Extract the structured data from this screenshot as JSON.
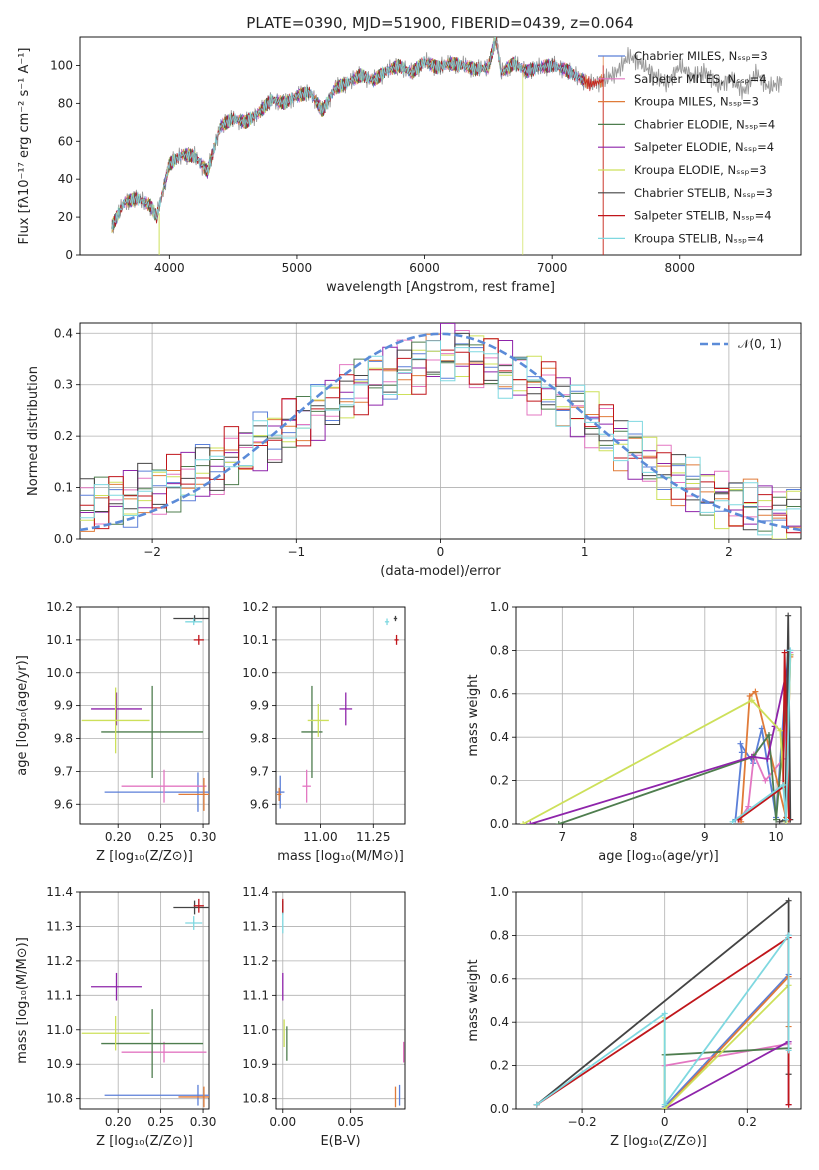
{
  "chart_data": [
    {
      "id": "spectrum",
      "type": "line",
      "title": "PLATE=0390, MJD=51900, FIBERID=0439, z=0.064",
      "xlabel": "wavelength [Angstrom, rest frame]",
      "ylabel": "Flux [fλ10⁻¹⁷ erg cm⁻² s⁻¹ A⁻¹]",
      "xlim": [
        3300,
        8950
      ],
      "ylim": [
        0,
        115
      ],
      "xticks": [
        4000,
        5000,
        6000,
        7000,
        8000
      ],
      "yticks": [
        0,
        20,
        40,
        60,
        80,
        100
      ],
      "grid": false,
      "legend_position": "top-right",
      "observed_spectrum": {
        "x": [
          3550,
          3650,
          3750,
          3850,
          3900,
          3950,
          4000,
          4100,
          4200,
          4300,
          4400,
          4500,
          4600,
          4700,
          4800,
          4900,
          5000,
          5100,
          5200,
          5300,
          5400,
          5500,
          5600,
          5700,
          5800,
          5900,
          6000,
          6100,
          6200,
          6300,
          6400,
          6500,
          6560,
          6600,
          6700,
          6800,
          6900,
          7000,
          7100,
          7200,
          7300,
          7400,
          7500,
          7600,
          7700,
          7800,
          7900,
          8000,
          8100,
          8200,
          8300,
          8400,
          8500,
          8600,
          8700,
          8800
        ],
        "y": [
          15,
          28,
          30,
          26,
          20,
          34,
          48,
          53,
          52,
          44,
          68,
          72,
          70,
          75,
          82,
          80,
          84,
          86,
          76,
          88,
          91,
          95,
          92,
          97,
          100,
          96,
          102,
          99,
          101,
          100,
          98,
          99,
          115,
          96,
          101,
          97,
          99,
          100,
          98,
          94,
          90,
          92,
          96,
          105,
          101,
          95,
          90,
          100,
          94,
          97,
          89,
          93,
          86,
          96,
          88,
          92
        ]
      },
      "series": [
        {
          "name": "Chabrier MILES, Nₛₛₚ=3",
          "color": "#5b7fd8",
          "cutoff": null
        },
        {
          "name": "Salpeter MILES, Nₛₛₚ=4",
          "color": "#e377c2",
          "cutoff": null
        },
        {
          "name": "Kroupa MILES, Nₛₛₚ=3",
          "color": "#e07b39",
          "cutoff": [
            7400,
            0,
            105
          ]
        },
        {
          "name": "Chabrier ELODIE, Nₛₛₚ=4",
          "color": "#4e7d4e",
          "cutoff": null
        },
        {
          "name": "Salpeter ELODIE, Nₛₛₚ=4",
          "color": "#8e24aa",
          "cutoff": null
        },
        {
          "name": "Kroupa ELODIE, Nₛₛₚ=3",
          "color": "#cde05a",
          "cutoff": [
            6770,
            0,
            100
          ]
        },
        {
          "name": "Chabrier STELIB, Nₛₛₚ=3",
          "color": "#444444",
          "cutoff": null
        },
        {
          "name": "Salpeter STELIB, Nₛₛₚ=4",
          "color": "#c0161b",
          "cutoff": [
            7400,
            0,
            100
          ]
        },
        {
          "name": "Kroupa STELIB, Nₛₛₚ=4",
          "color": "#7fd8e0",
          "cutoff": null
        }
      ]
    },
    {
      "id": "residuals",
      "type": "line",
      "xlabel": "(data-model)/error",
      "ylabel": "Normed distribution",
      "xlim": [
        -2.5,
        2.5
      ],
      "ylim": [
        0,
        0.42
      ],
      "xticks": [
        -2,
        -1,
        0,
        1,
        2
      ],
      "yticks": [
        0.0,
        0.1,
        0.2,
        0.3,
        0.4
      ],
      "grid": true,
      "legend_position": "top-right",
      "reference_curve": {
        "name": "𝒩(0, 1)",
        "color": "#5b8bd8",
        "style": "dashed",
        "mean": 0,
        "sd": 1
      },
      "histogram_bins": {
        "start": -2.5,
        "width": 0.1,
        "count": 50
      },
      "histogram_shape": [
        0.06,
        0.07,
        0.08,
        0.08,
        0.09,
        0.1,
        0.11,
        0.12,
        0.13,
        0.14,
        0.16,
        0.17,
        0.19,
        0.2,
        0.22,
        0.23,
        0.25,
        0.27,
        0.28,
        0.3,
        0.31,
        0.32,
        0.33,
        0.34,
        0.35,
        0.36,
        0.36,
        0.35,
        0.34,
        0.33,
        0.32,
        0.3,
        0.29,
        0.27,
        0.25,
        0.23,
        0.21,
        0.19,
        0.17,
        0.15,
        0.13,
        0.12,
        0.1,
        0.09,
        0.08,
        0.07,
        0.06,
        0.06,
        0.05,
        0.05
      ]
    },
    {
      "id": "z-age",
      "type": "scatter",
      "xlabel": "Z [log₁₀(Z/Z⊙)]",
      "ylabel": "age  [log₁₀(age/yr)]",
      "xlim": [
        0.155,
        0.307
      ],
      "ylim": [
        9.54,
        10.2
      ],
      "xticks": [
        0.2,
        0.25,
        0.3
      ],
      "yticks": [
        9.6,
        9.7,
        9.8,
        9.9,
        10.0,
        10.1,
        10.2
      ],
      "grid": true,
      "points": [
        {
          "x": 0.294,
          "y": 9.637,
          "ex": 0.11,
          "ey": 0.06,
          "color": "#5b7fd8"
        },
        {
          "x": 0.254,
          "y": 9.655,
          "ex": 0.05,
          "ey": 0.05,
          "color": "#e377c2"
        },
        {
          "x": 0.301,
          "y": 9.63,
          "ex": 0.03,
          "ey": 0.05,
          "color": "#e07b39"
        },
        {
          "x": 0.24,
          "y": 9.82,
          "ex": 0.06,
          "ey": 0.14,
          "color": "#4e7d4e"
        },
        {
          "x": 0.198,
          "y": 9.89,
          "ex": 0.03,
          "ey": 0.05,
          "color": "#8e24aa"
        },
        {
          "x": 0.197,
          "y": 9.855,
          "ex": 0.04,
          "ey": 0.1,
          "color": "#cde05a"
        },
        {
          "x": 0.29,
          "y": 10.165,
          "ex": 0.025,
          "ey": 0.01,
          "color": "#444444"
        },
        {
          "x": 0.295,
          "y": 10.1,
          "ex": 0.006,
          "ey": 0.015,
          "color": "#c0161b"
        },
        {
          "x": 0.289,
          "y": 10.155,
          "ex": 0.01,
          "ey": 0.01,
          "color": "#7fd8e0"
        }
      ]
    },
    {
      "id": "mass-age",
      "type": "scatter",
      "xlabel": "mass [log₁₀(M/M⊙)]",
      "xlim": [
        10.79,
        11.4
      ],
      "ylim": [
        9.54,
        10.2
      ],
      "xticks": [
        11.0,
        11.25
      ],
      "yticks": [
        9.6,
        9.7,
        9.8,
        9.9,
        10.0,
        10.1,
        10.2
      ],
      "grid": true,
      "points": [
        {
          "x": 10.81,
          "y": 9.637,
          "ex": 0.02,
          "ey": 0.05,
          "color": "#5b7fd8"
        },
        {
          "x": 10.935,
          "y": 9.655,
          "ex": 0.02,
          "ey": 0.05,
          "color": "#e377c2"
        },
        {
          "x": 10.805,
          "y": 9.63,
          "ex": 0.01,
          "ey": 0.02,
          "color": "#e07b39"
        },
        {
          "x": 10.96,
          "y": 9.82,
          "ex": 0.05,
          "ey": 0.14,
          "color": "#4e7d4e"
        },
        {
          "x": 11.12,
          "y": 9.89,
          "ex": 0.03,
          "ey": 0.05,
          "color": "#8e24aa"
        },
        {
          "x": 10.99,
          "y": 9.855,
          "ex": 0.05,
          "ey": 0.05,
          "color": "#cde05a"
        },
        {
          "x": 11.355,
          "y": 10.165,
          "ex": 0.008,
          "ey": 0.008,
          "color": "#444444"
        },
        {
          "x": 11.36,
          "y": 10.1,
          "ex": 0.01,
          "ey": 0.015,
          "color": "#c0161b"
        },
        {
          "x": 11.315,
          "y": 10.155,
          "ex": 0.01,
          "ey": 0.01,
          "color": "#7fd8e0"
        }
      ]
    },
    {
      "id": "age-weight",
      "type": "line",
      "xlabel": "age  [log₁₀(age/yr)]",
      "ylabel": "mass weight",
      "xlim": [
        6.35,
        10.35
      ],
      "ylim": [
        0,
        1.0
      ],
      "xticks": [
        7,
        8,
        9,
        10
      ],
      "yticks": [
        0.0,
        0.2,
        0.4,
        0.6,
        0.8,
        1.0
      ],
      "grid": true,
      "series": [
        {
          "color": "#5b7fd8",
          "x": [
            9.43,
            9.52,
            9.5,
            9.68,
            9.8,
            10.0,
            10.17
          ],
          "y": [
            0.02,
            0.33,
            0.37,
            0.28,
            0.44,
            0.03,
            0.8
          ]
        },
        {
          "color": "#e377c2",
          "x": [
            9.49,
            9.61,
            9.69,
            9.85,
            10.1,
            10.2
          ],
          "y": [
            0.02,
            0.08,
            0.32,
            0.2,
            0.3,
            0.79
          ]
        },
        {
          "color": "#e07b39",
          "x": [
            9.51,
            9.63,
            9.71,
            10.14,
            10.2
          ],
          "y": [
            0.01,
            0.59,
            0.61,
            0.03,
            0.77
          ]
        },
        {
          "color": "#4e7d4e",
          "x": [
            6.95,
            9.68,
            9.9,
            10.0,
            10.2
          ],
          "y": [
            0.0,
            0.31,
            0.41,
            0.02,
            0.78
          ]
        },
        {
          "color": "#8e24aa",
          "x": [
            6.55,
            9.66,
            9.88,
            9.98,
            10.2
          ],
          "y": [
            0.0,
            0.31,
            0.3,
            0.45,
            0.78
          ]
        },
        {
          "color": "#cde05a",
          "x": [
            6.45,
            9.66,
            10.06,
            10.14,
            10.2
          ],
          "y": [
            0.0,
            0.57,
            0.43,
            0.01,
            0.78
          ]
        },
        {
          "color": "#444444",
          "x": [
            10.05,
            10.13,
            10.17,
            10.2
          ],
          "y": [
            0.01,
            0.02,
            0.96,
            0.02
          ]
        },
        {
          "color": "#c0161b",
          "x": [
            9.47,
            10.1,
            10.12,
            10.18
          ],
          "y": [
            0.02,
            0.17,
            0.79,
            0.02
          ]
        },
        {
          "color": "#7fd8e0",
          "x": [
            9.39,
            10.1,
            10.14,
            10.2
          ],
          "y": [
            0.01,
            0.18,
            0.02,
            0.8
          ]
        }
      ]
    },
    {
      "id": "z-mass",
      "type": "scatter",
      "xlabel": "Z [log₁₀(Z/Z⊙)]",
      "ylabel": "mass [log₁₀(M/M⊙)]",
      "xlim": [
        0.155,
        0.307
      ],
      "ylim": [
        10.77,
        11.4
      ],
      "xticks": [
        0.2,
        0.25,
        0.3
      ],
      "yticks": [
        10.8,
        10.9,
        11.0,
        11.1,
        11.2,
        11.3,
        11.4
      ],
      "grid": true,
      "points": [
        {
          "x": 0.294,
          "y": 10.81,
          "ex": 0.11,
          "ey": 0.03,
          "color": "#5b7fd8"
        },
        {
          "x": 0.254,
          "y": 10.935,
          "ex": 0.05,
          "ey": 0.03,
          "color": "#e377c2"
        },
        {
          "x": 0.301,
          "y": 10.805,
          "ex": 0.03,
          "ey": 0.03,
          "color": "#e07b39"
        },
        {
          "x": 0.24,
          "y": 10.96,
          "ex": 0.06,
          "ey": 0.1,
          "color": "#4e7d4e"
        },
        {
          "x": 0.198,
          "y": 11.125,
          "ex": 0.03,
          "ey": 0.04,
          "color": "#8e24aa"
        },
        {
          "x": 0.197,
          "y": 10.99,
          "ex": 0.04,
          "ey": 0.05,
          "color": "#cde05a"
        },
        {
          "x": 0.29,
          "y": 11.355,
          "ex": 0.025,
          "ey": 0.02,
          "color": "#444444"
        },
        {
          "x": 0.295,
          "y": 11.36,
          "ex": 0.006,
          "ey": 0.02,
          "color": "#c0161b"
        },
        {
          "x": 0.289,
          "y": 11.31,
          "ex": 0.01,
          "ey": 0.02,
          "color": "#7fd8e0"
        }
      ]
    },
    {
      "id": "ebv-mass",
      "type": "scatter",
      "xlabel": "E(B-V)",
      "xlim": [
        -0.005,
        0.09
      ],
      "ylim": [
        10.77,
        11.4
      ],
      "xticks": [
        0.0,
        0.05
      ],
      "yticks": [
        10.8,
        10.9,
        11.0,
        11.1,
        11.2,
        11.3,
        11.4
      ],
      "grid": true,
      "points": [
        {
          "x": 0.086,
          "y": 10.81,
          "ex": 0,
          "ey": 0.03,
          "color": "#5b7fd8"
        },
        {
          "x": 0.089,
          "y": 10.935,
          "ex": 0,
          "ey": 0.03,
          "color": "#e377c2"
        },
        {
          "x": 0.083,
          "y": 10.805,
          "ex": 0,
          "ey": 0.03,
          "color": "#e07b39"
        },
        {
          "x": 0.003,
          "y": 10.96,
          "ex": 0,
          "ey": 0.05,
          "color": "#4e7d4e"
        },
        {
          "x": 0.0,
          "y": 11.125,
          "ex": 0,
          "ey": 0.04,
          "color": "#8e24aa"
        },
        {
          "x": 0.001,
          "y": 10.99,
          "ex": 0,
          "ey": 0.04,
          "color": "#cde05a"
        },
        {
          "x": 0.0,
          "y": 11.355,
          "ex": 0,
          "ey": 0.02,
          "color": "#444444"
        },
        {
          "x": 0.0,
          "y": 11.36,
          "ex": 0,
          "ey": 0.02,
          "color": "#c0161b"
        },
        {
          "x": 0.0,
          "y": 11.31,
          "ex": 0,
          "ey": 0.03,
          "color": "#7fd8e0"
        }
      ]
    },
    {
      "id": "z-weight",
      "type": "line",
      "xlabel": "Z [log₁₀(Z/Z⊙)]",
      "ylabel": "mass weight",
      "xlim": [
        -0.36,
        0.33
      ],
      "ylim": [
        0,
        1.0
      ],
      "xticks": [
        -0.2,
        0.0,
        0.2
      ],
      "yticks": [
        0.0,
        0.2,
        0.4,
        0.6,
        0.8,
        1.0
      ],
      "grid": true,
      "series": [
        {
          "color": "#5b7fd8",
          "x": [
            0.0,
            0.3,
            0.3
          ],
          "y": [
            0.01,
            0.62,
            0.8
          ]
        },
        {
          "color": "#e377c2",
          "x": [
            0.0,
            0.3,
            0.3
          ],
          "y": [
            0.2,
            0.3,
            0.79
          ]
        },
        {
          "color": "#e07b39",
          "x": [
            0.0,
            0.3,
            0.3
          ],
          "y": [
            0.0,
            0.61,
            0.38
          ]
        },
        {
          "color": "#4e7d4e",
          "x": [
            0.0,
            0.0,
            0.3
          ],
          "y": [
            0.0,
            0.25,
            0.28
          ]
        },
        {
          "color": "#8e24aa",
          "x": [
            0.0,
            0.3,
            0.3
          ],
          "y": [
            0.0,
            0.31,
            0.02
          ]
        },
        {
          "color": "#cde05a",
          "x": [
            0.0,
            0.0,
            0.3
          ],
          "y": [
            0.42,
            0.0,
            0.57
          ]
        },
        {
          "color": "#444444",
          "x": [
            -0.31,
            0.3,
            0.3
          ],
          "y": [
            0.02,
            0.96,
            0.16
          ]
        },
        {
          "color": "#c0161b",
          "x": [
            -0.31,
            0.3,
            0.3
          ],
          "y": [
            0.02,
            0.79,
            0.02
          ]
        },
        {
          "color": "#7fd8e0",
          "x": [
            -0.31,
            0.0,
            0.0,
            0.3,
            0.3
          ],
          "y": [
            0.02,
            0.44,
            0.02,
            0.8,
            0.27
          ]
        }
      ]
    }
  ]
}
